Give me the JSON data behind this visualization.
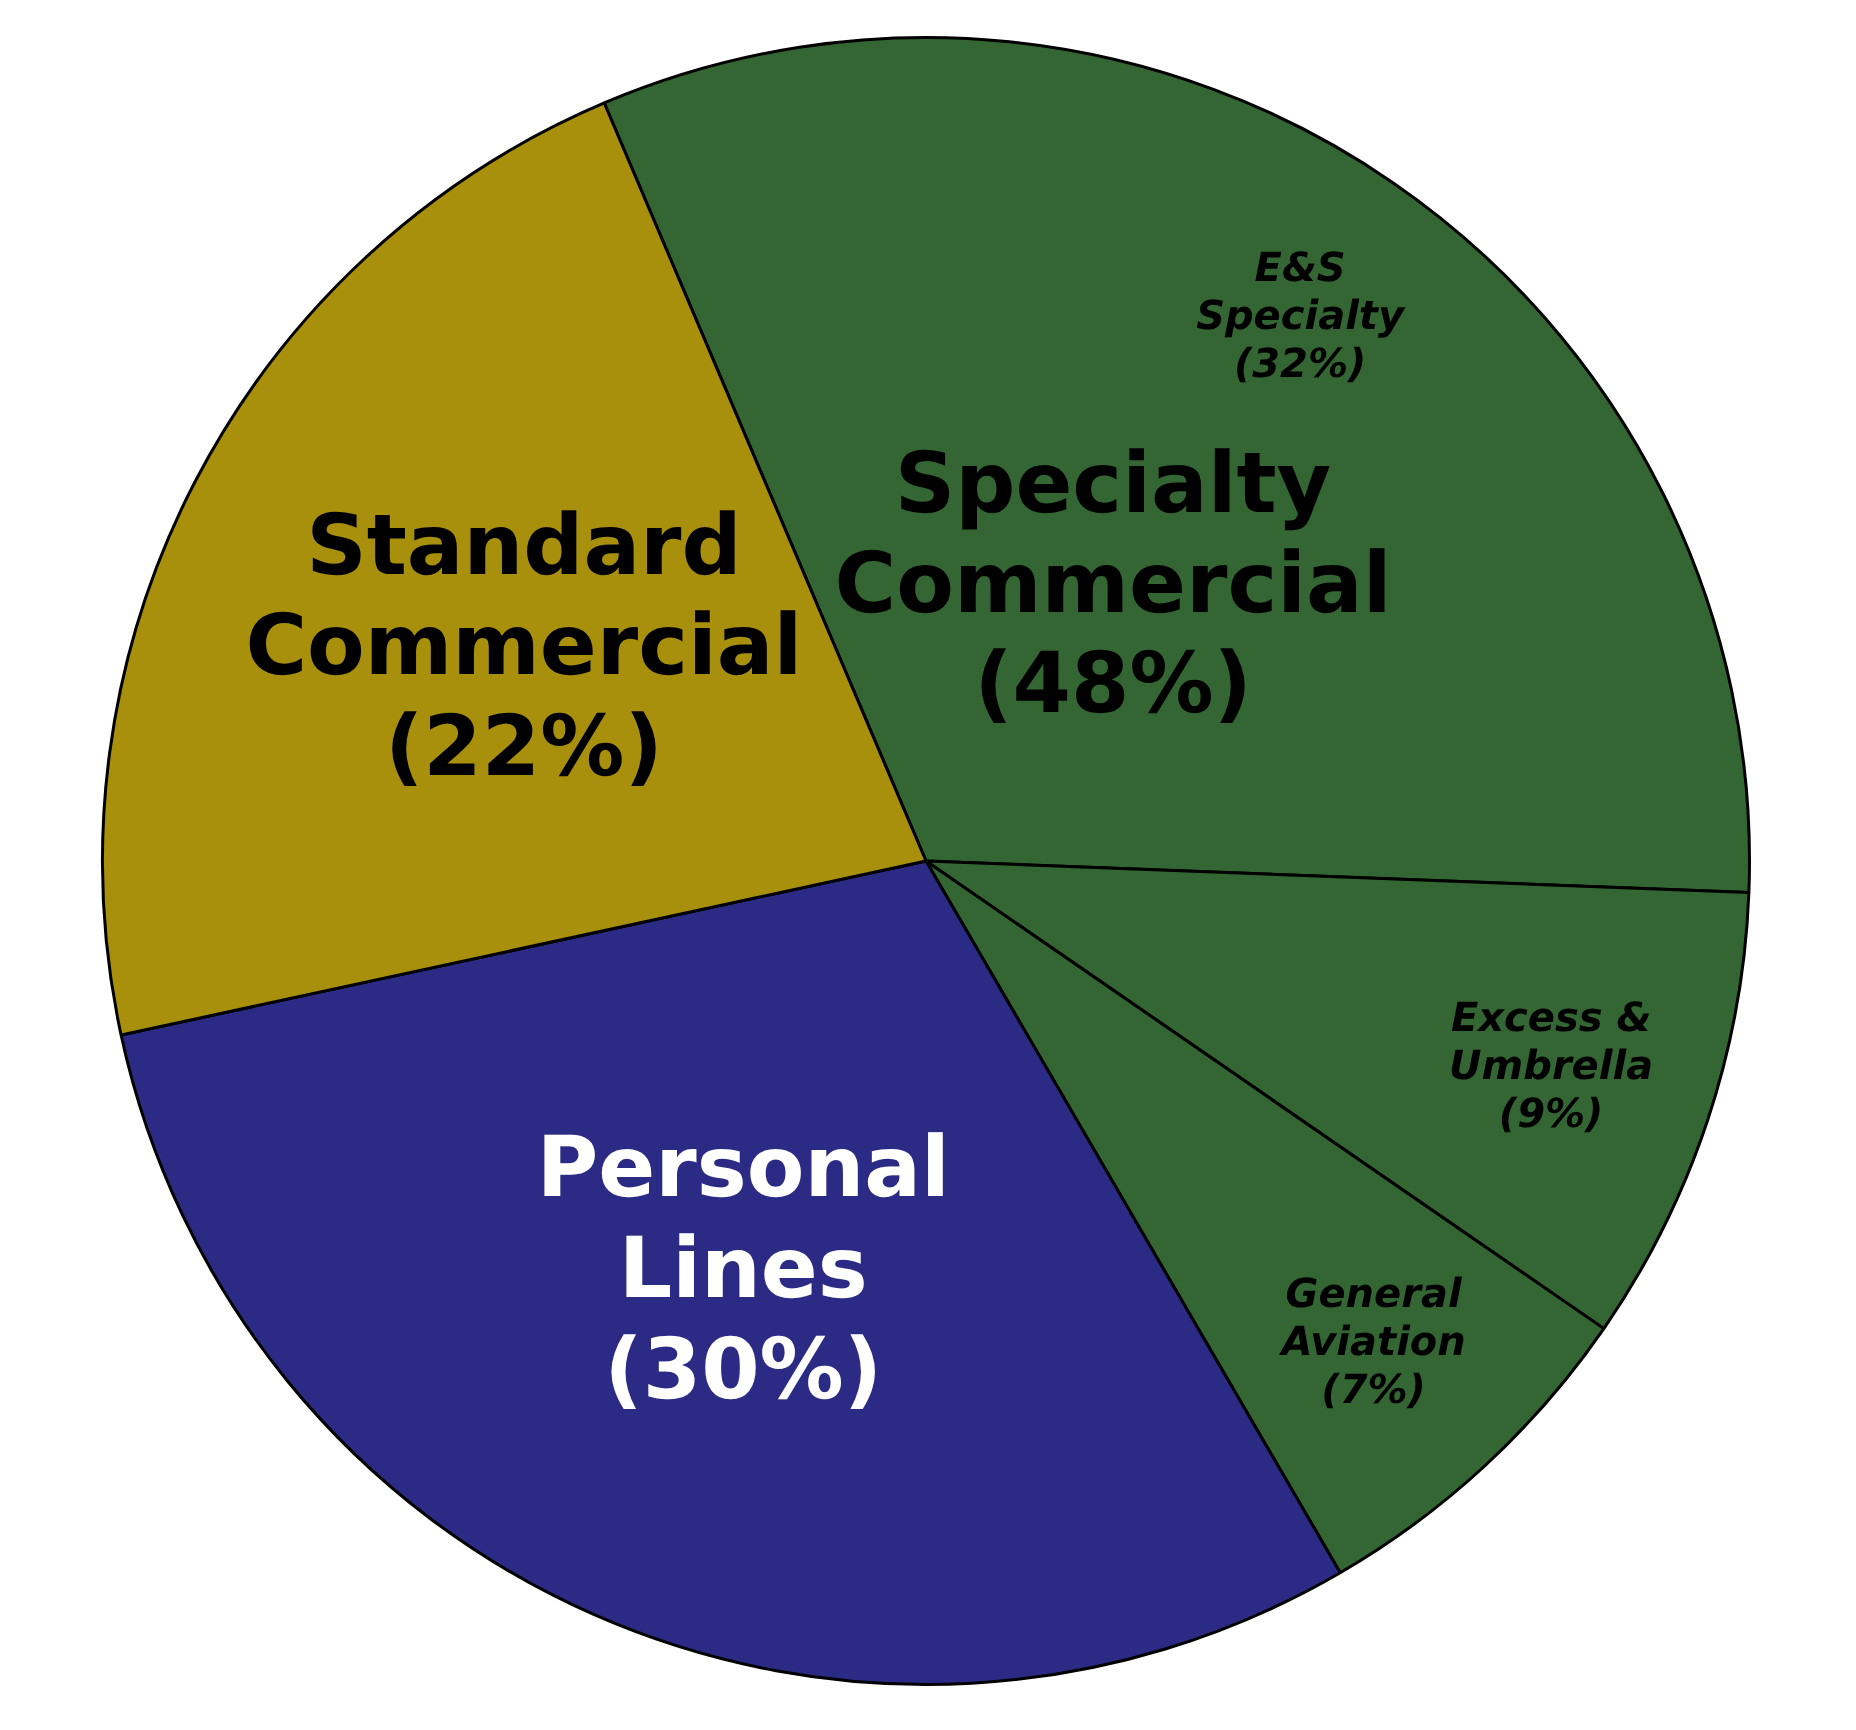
{
  "chart_data": {
    "type": "pie",
    "categories": [
      "E&S Specialty",
      "Excess & Umbrella",
      "General Aviation",
      "Personal Lines",
      "Standard Commercial"
    ],
    "values": [
      32,
      9,
      7,
      30,
      22
    ],
    "value_labels": [
      "(32%)",
      "(9%)",
      "(7%)",
      "(30%)",
      "(22%)"
    ],
    "colors": [
      "#336633",
      "#336633",
      "#336633",
      "#2b2b85",
      "#a8900c"
    ],
    "annotations": [
      "Specialty Commercial (48%)"
    ],
    "legend": false
  }
}
